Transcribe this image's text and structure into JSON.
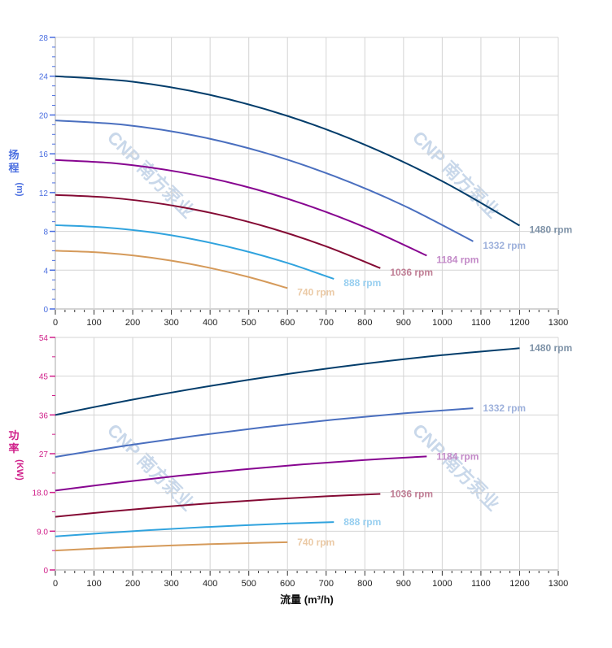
{
  "watermark": "CNP 南方泵业",
  "chart_data": [
    {
      "type": "line",
      "ylabel": [
        "扬",
        "程",
        "(m)"
      ],
      "xlim": [
        0,
        1300
      ],
      "ylim": [
        0,
        28
      ],
      "xticks": [
        0,
        100,
        200,
        300,
        400,
        500,
        600,
        700,
        800,
        900,
        1000,
        1100,
        1200,
        1300
      ],
      "yticks": [
        "0",
        "4",
        "8",
        "12",
        "16",
        "20",
        "24",
        "28"
      ],
      "ytick_values": [
        0,
        4,
        8,
        12,
        16,
        20,
        24,
        28
      ],
      "grid": true,
      "axis_color": "#4a6ee0",
      "series": [
        {
          "name": "1480 rpm",
          "color": "#033d6b",
          "label_color": "#7f93a8",
          "x": [
            0,
            200,
            400,
            600,
            800,
            1000,
            1200
          ],
          "y": [
            24,
            23.43,
            22.07,
            19.9,
            16.93,
            13.17,
            8.6
          ]
        },
        {
          "name": "1332 rpm",
          "color": "#4a6fbf",
          "label_color": "#9fb2dc",
          "x": [
            0,
            180,
            360,
            540,
            720,
            900,
            1080
          ],
          "y": [
            19.44,
            18.98,
            17.88,
            16.12,
            13.71,
            10.67,
            6.97
          ]
        },
        {
          "name": "1184 rpm",
          "color": "#870590",
          "label_color": "#c38ac8",
          "x": [
            0,
            160,
            320,
            480,
            640,
            800,
            960
          ],
          "y": [
            15.36,
            15.0,
            14.12,
            12.74,
            10.84,
            8.43,
            5.5
          ]
        },
        {
          "name": "1036 rpm",
          "color": "#840a34",
          "label_color": "#c07e95",
          "x": [
            0,
            140,
            280,
            420,
            560,
            700,
            840
          ],
          "y": [
            11.76,
            11.48,
            10.81,
            9.75,
            8.3,
            6.45,
            4.21
          ]
        },
        {
          "name": "888 rpm",
          "color": "#30a3de",
          "label_color": "#98cff0",
          "x": [
            0,
            120,
            240,
            360,
            480,
            600,
            720
          ],
          "y": [
            8.64,
            8.43,
            7.95,
            7.16,
            6.09,
            4.74,
            3.1
          ]
        },
        {
          "name": "740 rpm",
          "color": "#d59a5a",
          "label_color": "#ebcaa6",
          "x": [
            0,
            100,
            200,
            300,
            400,
            500,
            600
          ],
          "y": [
            6.0,
            5.86,
            5.52,
            4.98,
            4.23,
            3.29,
            2.15
          ]
        }
      ]
    },
    {
      "type": "line",
      "xlabel": "流量 (m³/h)",
      "ylabel": [
        "功",
        "率",
        "(KW)"
      ],
      "xlim": [
        0,
        1300
      ],
      "ylim": [
        0,
        54
      ],
      "xticks": [
        0,
        100,
        200,
        300,
        400,
        500,
        600,
        700,
        800,
        900,
        1000,
        1100,
        1200,
        1300
      ],
      "yticks": [
        "0",
        "9.0",
        "18.0",
        "27",
        "36",
        "45",
        "54"
      ],
      "ytick_values": [
        0,
        9,
        18,
        27,
        36,
        45,
        54
      ],
      "grid": true,
      "axis_color": "#d0208a",
      "series": [
        {
          "name": "1480 rpm",
          "color": "#033d6b",
          "label_color": "#7f93a8",
          "x": [
            0,
            200,
            400,
            600,
            800,
            1000,
            1200
          ],
          "y": [
            36,
            39.56,
            42.72,
            45.5,
            47.89,
            49.89,
            51.5
          ]
        },
        {
          "name": "1332 rpm",
          "color": "#4a6fbf",
          "label_color": "#9fb2dc",
          "x": [
            0,
            180,
            360,
            540,
            720,
            900,
            1080
          ],
          "y": [
            26.24,
            28.84,
            31.14,
            33.17,
            34.91,
            36.37,
            37.54
          ]
        },
        {
          "name": "1184 rpm",
          "color": "#870590",
          "label_color": "#c38ac8",
          "x": [
            0,
            160,
            320,
            480,
            640,
            800,
            960
          ],
          "y": [
            18.43,
            20.25,
            21.87,
            23.3,
            24.52,
            25.54,
            26.37
          ]
        },
        {
          "name": "1036 rpm",
          "color": "#840a34",
          "label_color": "#c07e95",
          "x": [
            0,
            140,
            280,
            420,
            560,
            700,
            840
          ],
          "y": [
            12.35,
            13.57,
            14.65,
            15.61,
            16.43,
            17.11,
            17.66
          ]
        },
        {
          "name": "888 rpm",
          "color": "#30a3de",
          "label_color": "#98cff0",
          "x": [
            0,
            120,
            240,
            360,
            480,
            600,
            720
          ],
          "y": [
            7.78,
            8.55,
            9.23,
            9.83,
            10.34,
            10.78,
            11.12
          ]
        },
        {
          "name": "740 rpm",
          "color": "#d59a5a",
          "label_color": "#ebcaa6",
          "x": [
            0,
            100,
            200,
            300,
            400,
            500,
            600
          ],
          "y": [
            4.5,
            4.95,
            5.34,
            5.69,
            5.99,
            6.24,
            6.44
          ]
        }
      ]
    }
  ]
}
